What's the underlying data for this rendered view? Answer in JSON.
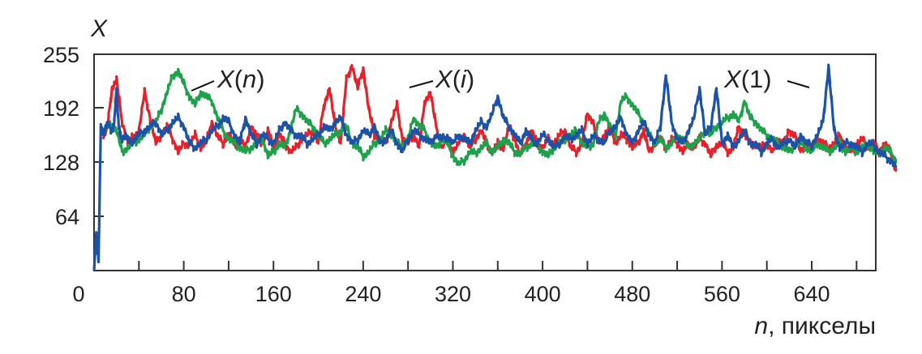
{
  "chart_data": {
    "type": "line",
    "ylabel": "X",
    "xlabel_var": "n",
    "xlabel_rest": ", пикселы",
    "xlim": [
      0,
      720
    ],
    "ylim": [
      0,
      255
    ],
    "xticks": [
      0,
      80,
      160,
      240,
      320,
      400,
      480,
      560,
      640
    ],
    "yticks": [
      64,
      128,
      192,
      255
    ],
    "grid": false,
    "series": [
      {
        "name": "X(i)",
        "label_var": "X",
        "label_arg": "i",
        "color": "#e8202a",
        "x": [
          8,
          12,
          16,
          20,
          25,
          30,
          35,
          40,
          45,
          50,
          55,
          60,
          65,
          70,
          75,
          80,
          85,
          90,
          95,
          100,
          105,
          110,
          115,
          120,
          125,
          130,
          135,
          140,
          145,
          150,
          155,
          160,
          165,
          170,
          175,
          180,
          185,
          190,
          195,
          200,
          205,
          210,
          215,
          220,
          225,
          230,
          235,
          240,
          245,
          250,
          255,
          260,
          265,
          270,
          275,
          280,
          285,
          290,
          295,
          300,
          305,
          310,
          315,
          320,
          325,
          330,
          335,
          340,
          345,
          350,
          355,
          360,
          365,
          370,
          375,
          380,
          385,
          390,
          395,
          400,
          405,
          410,
          415,
          420,
          425,
          430,
          435,
          440,
          445,
          450,
          455,
          460,
          465,
          470,
          475,
          480,
          485,
          490,
          495,
          500,
          505,
          510,
          515,
          520,
          525,
          530,
          535,
          540,
          545,
          550,
          555,
          560,
          565,
          570,
          575,
          580,
          585,
          590,
          595,
          600,
          605,
          610,
          615,
          620,
          625,
          630,
          635,
          640,
          645,
          650,
          655,
          660,
          665,
          670,
          675,
          680,
          685,
          690,
          695,
          700,
          705,
          710,
          715
        ],
        "y": [
          155,
          170,
          215,
          225,
          175,
          152,
          158,
          165,
          210,
          180,
          150,
          160,
          170,
          155,
          140,
          150,
          148,
          160,
          145,
          152,
          175,
          158,
          150,
          162,
          148,
          155,
          145,
          170,
          158,
          150,
          165,
          145,
          160,
          150,
          140,
          145,
          155,
          160,
          165,
          150,
          195,
          215,
          170,
          150,
          225,
          242,
          215,
          238,
          190,
          160,
          155,
          150,
          175,
          195,
          155,
          150,
          160,
          145,
          200,
          210,
          170,
          145,
          155,
          140,
          150,
          160,
          145,
          155,
          165,
          150,
          140,
          150,
          145,
          170,
          155,
          135,
          150,
          165,
          150,
          145,
          155,
          150,
          160,
          165,
          145,
          140,
          150,
          185,
          175,
          150,
          160,
          170,
          150,
          160,
          155,
          145,
          150,
          165,
          140,
          150,
          155,
          145,
          155,
          150,
          140,
          150,
          145,
          155,
          150,
          135,
          148,
          150,
          140,
          145,
          170,
          160,
          150,
          148,
          145,
          150,
          140,
          155,
          150,
          165,
          160,
          140,
          150,
          145,
          155,
          150,
          145,
          150,
          160,
          145,
          140,
          150,
          155,
          145,
          150,
          140,
          150,
          140,
          118
        ]
      },
      {
        "name": "X(n)",
        "label_var": "X",
        "label_arg": "n",
        "color": "#1fa14c",
        "x": [
          8,
          12,
          16,
          20,
          25,
          30,
          35,
          40,
          45,
          50,
          55,
          60,
          65,
          70,
          75,
          80,
          85,
          90,
          95,
          100,
          105,
          110,
          115,
          120,
          125,
          130,
          135,
          140,
          145,
          150,
          155,
          160,
          165,
          170,
          175,
          180,
          185,
          190,
          195,
          200,
          205,
          210,
          215,
          220,
          225,
          230,
          235,
          240,
          245,
          250,
          255,
          260,
          265,
          270,
          275,
          280,
          285,
          290,
          295,
          300,
          305,
          310,
          315,
          320,
          325,
          330,
          335,
          340,
          345,
          350,
          355,
          360,
          365,
          370,
          375,
          380,
          385,
          390,
          395,
          400,
          405,
          410,
          415,
          420,
          425,
          430,
          435,
          440,
          445,
          450,
          455,
          460,
          465,
          470,
          475,
          480,
          485,
          490,
          495,
          500,
          505,
          510,
          515,
          520,
          525,
          530,
          535,
          540,
          545,
          550,
          555,
          560,
          565,
          570,
          575,
          580,
          585,
          590,
          595,
          600,
          605,
          610,
          615,
          620,
          625,
          630,
          635,
          640,
          645,
          650,
          655,
          660,
          665,
          670,
          675,
          680,
          685,
          690,
          695,
          700,
          705,
          710,
          715
        ],
        "y": [
          165,
          170,
          172,
          165,
          140,
          145,
          150,
          155,
          160,
          170,
          175,
          190,
          210,
          230,
          235,
          220,
          205,
          195,
          210,
          205,
          200,
          180,
          165,
          155,
          150,
          145,
          140,
          145,
          150,
          155,
          135,
          140,
          150,
          145,
          165,
          190,
          185,
          175,
          170,
          160,
          150,
          155,
          160,
          165,
          170,
          150,
          145,
          135,
          140,
          150,
          155,
          165,
          160,
          150,
          148,
          155,
          180,
          170,
          165,
          150,
          145,
          155,
          150,
          135,
          125,
          130,
          140,
          138,
          145,
          150,
          140,
          145,
          155,
          150,
          140,
          138,
          145,
          150,
          148,
          140,
          135,
          145,
          150,
          155,
          160,
          165,
          150,
          145,
          150,
          175,
          185,
          170,
          160,
          200,
          205,
          195,
          185,
          175,
          160,
          150,
          155,
          145,
          150,
          160,
          155,
          145,
          150,
          155,
          165,
          160,
          170,
          175,
          180,
          185,
          175,
          200,
          180,
          175,
          165,
          160,
          155,
          150,
          145,
          140,
          148,
          150,
          145,
          140,
          150,
          145,
          140,
          145,
          150,
          140,
          145,
          140,
          145,
          150,
          140,
          138,
          145,
          140,
          130
        ]
      },
      {
        "name": "X(1)",
        "label_var": "X",
        "label_arg": "1",
        "color": "#1c53a6",
        "x": [
          0,
          2,
          4,
          6,
          8,
          10,
          12,
          16,
          18,
          20,
          22,
          24,
          28,
          32,
          36,
          40,
          45,
          50,
          55,
          60,
          65,
          70,
          75,
          80,
          85,
          90,
          95,
          100,
          105,
          110,
          115,
          120,
          125,
          130,
          135,
          140,
          145,
          150,
          155,
          160,
          165,
          170,
          175,
          180,
          185,
          190,
          195,
          200,
          205,
          210,
          215,
          220,
          225,
          230,
          235,
          240,
          245,
          250,
          255,
          260,
          265,
          270,
          275,
          280,
          285,
          290,
          295,
          300,
          305,
          310,
          315,
          320,
          325,
          330,
          335,
          340,
          345,
          350,
          355,
          360,
          365,
          370,
          375,
          380,
          385,
          390,
          395,
          400,
          405,
          410,
          415,
          420,
          425,
          430,
          435,
          440,
          445,
          450,
          455,
          460,
          465,
          470,
          475,
          480,
          485,
          490,
          495,
          500,
          505,
          510,
          515,
          520,
          525,
          530,
          535,
          540,
          545,
          550,
          555,
          560,
          565,
          570,
          575,
          580,
          585,
          590,
          595,
          600,
          605,
          610,
          615,
          620,
          625,
          630,
          635,
          640,
          645,
          650,
          655,
          660,
          665,
          670,
          675,
          680,
          685,
          690,
          695,
          700,
          705,
          710,
          715
        ],
        "y": [
          0,
          45,
          10,
          170,
          160,
          168,
          172,
          165,
          175,
          215,
          170,
          155,
          160,
          150,
          155,
          160,
          165,
          170,
          175,
          160,
          165,
          175,
          180,
          170,
          150,
          145,
          150,
          155,
          165,
          170,
          180,
          175,
          160,
          150,
          180,
          160,
          150,
          160,
          155,
          150,
          165,
          175,
          165,
          160,
          158,
          150,
          155,
          160,
          170,
          165,
          175,
          180,
          160,
          150,
          155,
          165,
          160,
          170,
          150,
          155,
          165,
          150,
          140,
          155,
          165,
          160,
          155,
          150,
          160,
          155,
          158,
          150,
          160,
          155,
          150,
          165,
          175,
          170,
          185,
          205,
          180,
          170,
          160,
          150,
          165,
          155,
          150,
          160,
          155,
          145,
          150,
          158,
          155,
          160,
          165,
          150,
          158,
          155,
          150,
          165,
          170,
          180,
          160,
          150,
          165,
          175,
          160,
          150,
          170,
          230,
          175,
          155,
          150,
          165,
          180,
          215,
          160,
          170,
          215,
          150,
          160,
          145,
          155,
          165,
          150,
          148,
          140,
          150,
          155,
          145,
          150,
          155,
          145,
          160,
          150,
          148,
          160,
          175,
          240,
          165,
          145,
          150,
          150,
          145,
          140,
          150,
          148,
          140,
          135,
          130,
          122
        ]
      }
    ]
  }
}
